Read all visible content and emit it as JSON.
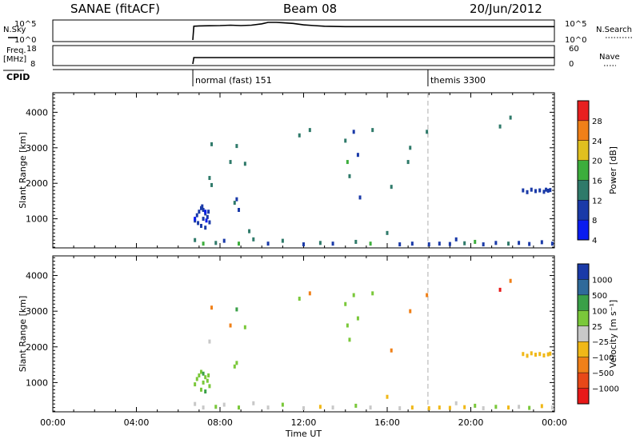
{
  "header": {
    "station": "SANAE (fitACF)",
    "beam": "Beam 08",
    "date": "20/Jun/2012"
  },
  "chart_data": [
    {
      "panel": "nsky",
      "type": "line",
      "left_label": "N.Sky",
      "right_label": "N.Search",
      "left_ticks": [
        "10^5",
        "10^0"
      ],
      "right_ticks": [
        "10^5",
        "10^0"
      ],
      "x_range": [
        0,
        24
      ],
      "y_range_log10": [
        0,
        5
      ],
      "x": [
        6.7,
        6.75,
        7.0,
        7.5,
        8.0,
        8.5,
        9.0,
        9.5,
        10.0,
        10.3,
        10.7,
        11.0,
        11.5,
        12.0,
        12.5,
        13.0,
        14.0,
        16.0,
        18.0,
        20.0,
        22.0,
        24.0
      ],
      "y_log10": [
        0,
        3.9,
        4.0,
        4.05,
        4.1,
        4.2,
        4.1,
        4.2,
        4.6,
        5.0,
        5.0,
        4.9,
        4.7,
        4.3,
        4.1,
        3.9,
        3.8,
        3.8,
        3.8,
        3.8,
        3.8,
        3.8
      ]
    },
    {
      "panel": "freq",
      "type": "line",
      "left_label": "Freq.",
      "left_unit": "[MHz]",
      "right_label": "Nave",
      "left_ticks": [
        "18",
        "8"
      ],
      "right_ticks": [
        "60",
        "0"
      ],
      "x_range": [
        0,
        24
      ],
      "y_range": [
        8,
        18
      ],
      "x": [
        6.7,
        6.75,
        24.0
      ],
      "y": [
        8,
        12.0,
        12.0
      ]
    },
    {
      "panel": "cpid",
      "label": "CPID",
      "programs": [
        {
          "start": 6.7,
          "text": "normal (fast) 151"
        },
        {
          "start": 17.95,
          "text": "themis 3300"
        }
      ]
    },
    {
      "panel": "power",
      "type": "scatter",
      "ylabel": "Slant Range [km]",
      "x_range": [
        0,
        24
      ],
      "y_range": [
        180,
        4550
      ],
      "yticks": [
        1000,
        2000,
        3000,
        4000
      ],
      "colorbar": {
        "label": "Power [dB]",
        "labels": [
          "4",
          "8",
          "12",
          "16",
          "20",
          "24",
          "28"
        ],
        "colors": [
          "#0a1cf0",
          "#1a3aa8",
          "#2f7a6a",
          "#3cae3c",
          "#e0c020",
          "#f08018",
          "#e82020"
        ]
      },
      "points": [
        [
          6.8,
          950,
          1
        ],
        [
          6.9,
          1100,
          1
        ],
        [
          7.0,
          1200,
          1
        ],
        [
          7.1,
          1300,
          1
        ],
        [
          7.2,
          1250,
          1
        ],
        [
          7.3,
          1150,
          1
        ],
        [
          7.4,
          1050,
          1
        ],
        [
          7.5,
          900,
          1
        ],
        [
          7.1,
          800,
          1
        ],
        [
          7.3,
          750,
          1
        ],
        [
          7.2,
          1000,
          1
        ],
        [
          7.45,
          1200,
          1
        ],
        [
          7.15,
          1350,
          1
        ],
        [
          6.95,
          880,
          1
        ],
        [
          7.35,
          950,
          0
        ],
        [
          8.8,
          1550,
          1
        ],
        [
          8.7,
          1450,
          2
        ],
        [
          8.9,
          1250,
          1
        ],
        [
          8.8,
          3050,
          2
        ],
        [
          7.6,
          3100,
          2
        ],
        [
          7.5,
          2150,
          2
        ],
        [
          7.6,
          1950,
          2
        ],
        [
          9.2,
          2550,
          2
        ],
        [
          9.4,
          650,
          2
        ],
        [
          8.5,
          2600,
          2
        ],
        [
          11.8,
          3350,
          2
        ],
        [
          12.3,
          3500,
          2
        ],
        [
          14.0,
          3200,
          2
        ],
        [
          14.1,
          2600,
          3
        ],
        [
          14.2,
          2200,
          2
        ],
        [
          14.4,
          3450,
          1
        ],
        [
          14.6,
          2800,
          1
        ],
        [
          14.7,
          1600,
          1
        ],
        [
          15.3,
          3500,
          2
        ],
        [
          16.2,
          1900,
          2
        ],
        [
          17.1,
          3000,
          2
        ],
        [
          17.0,
          2600,
          2
        ],
        [
          17.9,
          3450,
          2
        ],
        [
          21.4,
          3600,
          2
        ],
        [
          21.9,
          3850,
          2
        ],
        [
          22.5,
          1800,
          1
        ],
        [
          22.7,
          1750,
          1
        ],
        [
          22.9,
          1820,
          1
        ],
        [
          23.1,
          1780,
          1
        ],
        [
          23.3,
          1800,
          1
        ],
        [
          23.5,
          1760,
          1
        ],
        [
          23.6,
          1820,
          1
        ],
        [
          23.7,
          1790,
          1
        ],
        [
          23.8,
          1810,
          1
        ],
        [
          6.8,
          400,
          2
        ],
        [
          7.2,
          300,
          3
        ],
        [
          7.8,
          320,
          2
        ],
        [
          8.2,
          380,
          1
        ],
        [
          8.9,
          300,
          3
        ],
        [
          9.6,
          420,
          2
        ],
        [
          10.3,
          300,
          1
        ],
        [
          11.0,
          380,
          2
        ],
        [
          12.0,
          280,
          1
        ],
        [
          12.8,
          320,
          2
        ],
        [
          13.4,
          300,
          1
        ],
        [
          14.5,
          350,
          2
        ],
        [
          15.2,
          300,
          3
        ],
        [
          16.0,
          600,
          2
        ],
        [
          16.6,
          280,
          1
        ],
        [
          17.2,
          300,
          1
        ],
        [
          18.0,
          280,
          1
        ],
        [
          18.5,
          300,
          1
        ],
        [
          19.0,
          290,
          1
        ],
        [
          19.3,
          420,
          1
        ],
        [
          19.7,
          310,
          2
        ],
        [
          20.2,
          350,
          3
        ],
        [
          20.6,
          280,
          1
        ],
        [
          21.2,
          320,
          1
        ],
        [
          21.8,
          300,
          2
        ],
        [
          22.3,
          320,
          1
        ],
        [
          22.8,
          290,
          1
        ],
        [
          23.4,
          340,
          1
        ],
        [
          23.9,
          300,
          1
        ],
        [
          6.8,
          1000,
          0
        ],
        [
          7.3,
          1200,
          0
        ]
      ]
    },
    {
      "panel": "velocity",
      "type": "scatter",
      "ylabel": "Slant Range [km]",
      "x_range": [
        0,
        24
      ],
      "y_range": [
        180,
        4550
      ],
      "yticks": [
        1000,
        2000,
        3000,
        4000
      ],
      "xticks": [
        "00:00",
        "04:00",
        "08:00",
        "12:00",
        "16:00",
        "20:00",
        "00:00"
      ],
      "xlabel": "Time UT",
      "colorbar": {
        "label": "Velocity [m s⁻¹]",
        "labels": [
          "1000",
          "500",
          "100",
          "25",
          "−25",
          "−100",
          "−500",
          "−1000"
        ],
        "colors": [
          "#1a3aa8",
          "#2f6a9a",
          "#3aa048",
          "#7ac83a",
          "#c8c8c8",
          "#f0b818",
          "#f08018",
          "#e84818",
          "#e81818"
        ]
      },
      "points": [
        [
          6.8,
          950,
          3
        ],
        [
          6.9,
          1100,
          3
        ],
        [
          7.0,
          1200,
          3
        ],
        [
          7.1,
          1300,
          3
        ],
        [
          7.2,
          1250,
          2
        ],
        [
          7.3,
          1150,
          3
        ],
        [
          7.4,
          1050,
          3
        ],
        [
          7.5,
          900,
          3
        ],
        [
          7.1,
          800,
          3
        ],
        [
          7.3,
          750,
          2
        ],
        [
          7.2,
          1000,
          3
        ],
        [
          7.45,
          1200,
          3
        ],
        [
          8.8,
          1550,
          3
        ],
        [
          8.7,
          1450,
          3
        ],
        [
          8.8,
          3050,
          2
        ],
        [
          7.6,
          3100,
          6
        ],
        [
          7.5,
          2150,
          4
        ],
        [
          8.5,
          2600,
          6
        ],
        [
          9.2,
          2550,
          3
        ],
        [
          11.8,
          3350,
          3
        ],
        [
          12.3,
          3500,
          6
        ],
        [
          14.0,
          3200,
          3
        ],
        [
          14.1,
          2600,
          3
        ],
        [
          14.2,
          2200,
          3
        ],
        [
          14.4,
          3450,
          3
        ],
        [
          14.6,
          2800,
          3
        ],
        [
          15.3,
          3500,
          3
        ],
        [
          16.2,
          1900,
          6
        ],
        [
          17.1,
          3000,
          6
        ],
        [
          17.9,
          3450,
          6
        ],
        [
          21.4,
          3600,
          8
        ],
        [
          21.9,
          3850,
          6
        ],
        [
          22.5,
          1800,
          5
        ],
        [
          22.7,
          1750,
          5
        ],
        [
          22.9,
          1820,
          5
        ],
        [
          23.1,
          1780,
          5
        ],
        [
          23.3,
          1800,
          5
        ],
        [
          23.5,
          1760,
          5
        ],
        [
          23.7,
          1790,
          5
        ],
        [
          23.8,
          1810,
          5
        ],
        [
          6.8,
          400,
          4
        ],
        [
          7.2,
          300,
          4
        ],
        [
          7.8,
          320,
          3
        ],
        [
          8.2,
          380,
          4
        ],
        [
          8.9,
          300,
          3
        ],
        [
          9.6,
          420,
          4
        ],
        [
          10.3,
          300,
          4
        ],
        [
          11.0,
          380,
          3
        ],
        [
          12.0,
          280,
          4
        ],
        [
          12.8,
          320,
          5
        ],
        [
          13.4,
          300,
          4
        ],
        [
          14.5,
          350,
          3
        ],
        [
          15.2,
          300,
          4
        ],
        [
          16.0,
          600,
          5
        ],
        [
          16.6,
          280,
          4
        ],
        [
          17.2,
          300,
          5
        ],
        [
          18.0,
          280,
          5
        ],
        [
          18.5,
          300,
          5
        ],
        [
          19.0,
          290,
          5
        ],
        [
          19.3,
          420,
          4
        ],
        [
          19.7,
          310,
          5
        ],
        [
          20.2,
          350,
          3
        ],
        [
          20.6,
          280,
          4
        ],
        [
          21.2,
          320,
          3
        ],
        [
          21.8,
          300,
          5
        ],
        [
          22.3,
          320,
          4
        ],
        [
          22.8,
          290,
          3
        ],
        [
          23.4,
          340,
          5
        ],
        [
          23.9,
          300,
          4
        ]
      ]
    }
  ]
}
